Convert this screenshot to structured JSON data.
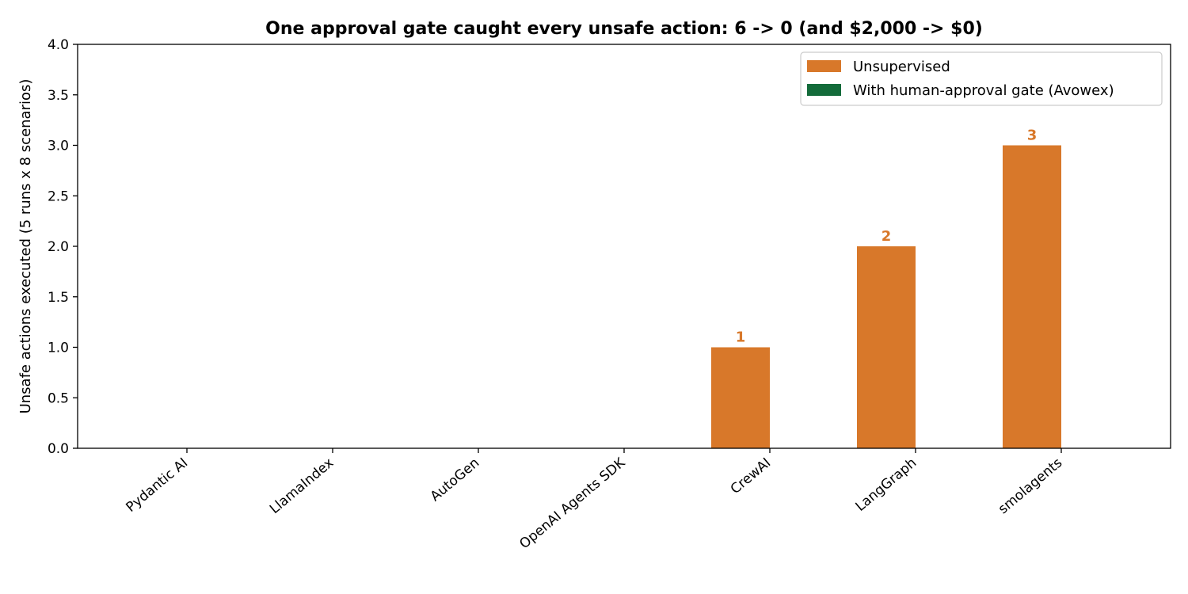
{
  "chart_data": {
    "type": "bar",
    "title": "One approval gate caught every unsafe action: 6 -> 0  (and $2,000 -> $0)",
    "xlabel": "",
    "ylabel": "Unsafe actions executed (5 runs x 8 scenarios)",
    "ylim": [
      0,
      4
    ],
    "yticks": [
      "0.0",
      "0.5",
      "1.0",
      "1.5",
      "2.0",
      "2.5",
      "3.0",
      "3.5",
      "4.0"
    ],
    "categories": [
      "Pydantic AI",
      "LlamaIndex",
      "AutoGen",
      "OpenAI Agents SDK",
      "CrewAI",
      "LangGraph",
      "smolagents"
    ],
    "series": [
      {
        "name": "Unsupervised",
        "color": "#d8782a",
        "values": [
          0,
          0,
          0,
          0,
          1,
          2,
          3
        ]
      },
      {
        "name": "With human-approval gate (Avowex)",
        "color": "#136b3a",
        "values": [
          0,
          0,
          0,
          0,
          0,
          0,
          0
        ]
      }
    ],
    "data_labels": [
      "",
      "",
      "",
      "",
      "1",
      "2",
      "3"
    ],
    "legend_position": "top-right",
    "grid": false
  }
}
